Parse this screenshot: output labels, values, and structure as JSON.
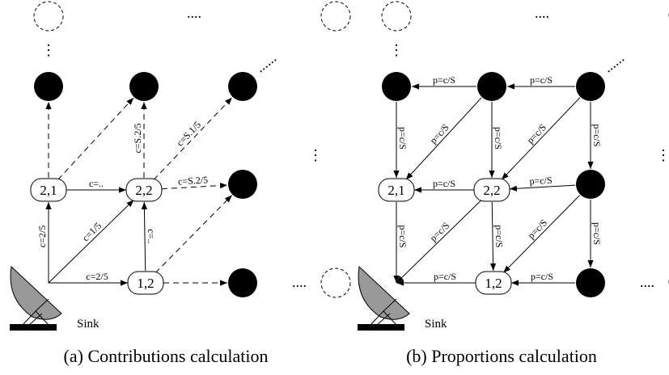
{
  "panels": [
    {
      "caption": "(a)  Contributions calculation",
      "sink": "Sink",
      "nodes": [
        "2,1",
        "2,2",
        "1,2"
      ],
      "edge_labels": [
        "c=..",
        "c=S.2/5",
        "c=2/5",
        "c=1/5",
        "c=2/5",
        "c=..",
        "c=S.2/5",
        "c=S.1/5"
      ],
      "dots": [
        "....",
        "⋮",
        "⋮",
        "......",
        "...."
      ]
    },
    {
      "caption": "(b)  Proportions calculation",
      "sink": "Sink",
      "nodes": [
        "2,1",
        "2,2",
        "1,2"
      ],
      "edge_labels": [
        "p=c/S",
        "p=c/S",
        "p=c/S",
        "p=c/S",
        "p=c/S",
        "p=c/S",
        "p=c/S",
        "p=c/S",
        "p=c/S",
        "p=c/S",
        "p=c/S",
        "p=c/S",
        "p=c/S",
        "p=c/S",
        "p=c/S",
        "p=c/S"
      ],
      "dots": [
        "....",
        "⋮",
        "⋮",
        "......",
        "...."
      ]
    }
  ]
}
